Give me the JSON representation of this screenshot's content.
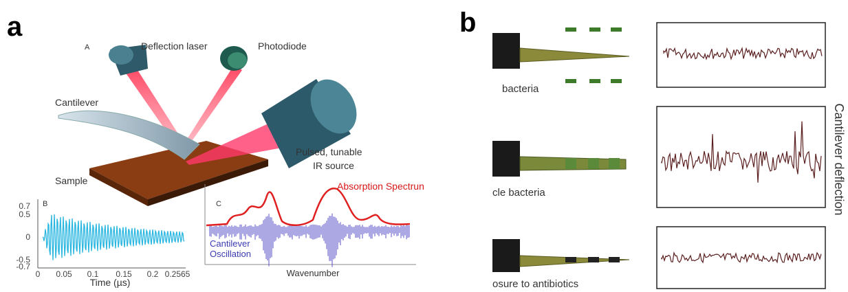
{
  "panel_a": {
    "label": "a",
    "sub_a": {
      "label": "A",
      "deflection_laser": "Deflection laser",
      "photodiode": "Photodiode",
      "cantilever": "Cantilever",
      "ir_source": [
        "Pulsed, tunable",
        "IR source"
      ],
      "sample": "Sample"
    },
    "sub_b": {
      "label": "B",
      "yticks": [
        "0.7",
        "0.5",
        "0",
        "-0.5",
        "-0.7"
      ],
      "xticks": [
        "0",
        "0.05",
        "0.1",
        "0.15",
        "0.2",
        "0.2565"
      ],
      "xlabel": "Time (µs)"
    },
    "sub_c": {
      "label": "C",
      "absorption": "Absorption Spectrun",
      "oscillation": [
        "Cantilever",
        "Oscillation"
      ],
      "xlabel": "Wavenumber"
    }
  },
  "panel_b": {
    "label": "b",
    "rows": [
      {
        "caption": "bacteria"
      },
      {
        "caption": "cle bacteria"
      },
      {
        "caption": "osure to antibiotics"
      }
    ],
    "ylabel": "Cantilever deflection"
  }
}
